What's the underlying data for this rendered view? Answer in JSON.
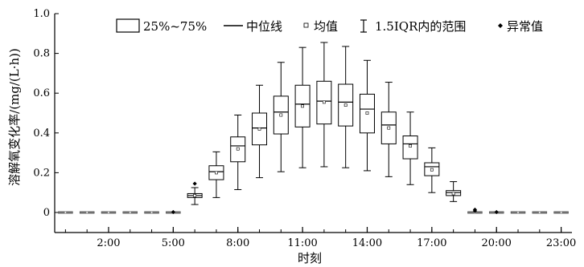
{
  "chart_data": {
    "type": "boxplot",
    "xlabel": "时刻",
    "ylabel": "溶解氧变化率/(mg/(L·h))",
    "ylim": [
      0,
      1.0
    ],
    "yticks": [
      {
        "value": 0,
        "label": "0"
      },
      {
        "value": 0.2,
        "label": "0.2"
      },
      {
        "value": 0.4,
        "label": "0.4"
      },
      {
        "value": 0.6,
        "label": "0.6"
      },
      {
        "value": 0.8,
        "label": "0.8"
      },
      {
        "value": 1.0,
        "label": "1.0"
      }
    ],
    "xlim": [
      -0.5,
      23.5
    ],
    "xticks": [
      {
        "value": 2,
        "label": "2:00"
      },
      {
        "value": 5,
        "label": "5:00"
      },
      {
        "value": 8,
        "label": "8:00"
      },
      {
        "value": 11,
        "label": "11:00"
      },
      {
        "value": 14,
        "label": "14:00"
      },
      {
        "value": 17,
        "label": "17:00"
      },
      {
        "value": 20,
        "label": "20:00"
      },
      {
        "value": 23,
        "label": "23:00"
      }
    ],
    "legend": {
      "placement": "top",
      "box": "25%~75%",
      "median": "中位线",
      "mean": "均值",
      "whisker": "1.5IQR内的范围",
      "outlier": "异常值"
    },
    "boxes": [
      {
        "hour": 0,
        "whisker_low": 0,
        "q1": 0,
        "median": 0,
        "q3": 0,
        "whisker_high": 0,
        "mean": 0,
        "outliers": []
      },
      {
        "hour": 1,
        "whisker_low": 0,
        "q1": 0,
        "median": 0,
        "q3": 0,
        "whisker_high": 0,
        "mean": 0,
        "outliers": []
      },
      {
        "hour": 2,
        "whisker_low": 0,
        "q1": 0,
        "median": 0,
        "q3": 0,
        "whisker_high": 0,
        "mean": 0,
        "outliers": []
      },
      {
        "hour": 3,
        "whisker_low": 0,
        "q1": 0,
        "median": 0,
        "q3": 0,
        "whisker_high": 0,
        "mean": 0,
        "outliers": []
      },
      {
        "hour": 4,
        "whisker_low": 0,
        "q1": 0,
        "median": 0,
        "q3": 0,
        "whisker_high": 0,
        "mean": 0,
        "outliers": []
      },
      {
        "hour": 5,
        "whisker_low": 0,
        "q1": 0,
        "median": 0,
        "q3": 0,
        "whisker_high": 0,
        "mean": 0,
        "outliers": [
          0.002
        ]
      },
      {
        "hour": 6,
        "whisker_low": 0.04,
        "q1": 0.075,
        "median": 0.085,
        "q3": 0.095,
        "whisker_high": 0.125,
        "mean": 0.085,
        "outliers": [
          0.145
        ]
      },
      {
        "hour": 7,
        "whisker_low": 0.075,
        "q1": 0.165,
        "median": 0.205,
        "q3": 0.235,
        "whisker_high": 0.305,
        "mean": 0.2,
        "outliers": []
      },
      {
        "hour": 8,
        "whisker_low": 0.115,
        "q1": 0.255,
        "median": 0.335,
        "q3": 0.38,
        "whisker_high": 0.49,
        "mean": 0.32,
        "outliers": []
      },
      {
        "hour": 9,
        "whisker_low": 0.175,
        "q1": 0.34,
        "median": 0.425,
        "q3": 0.5,
        "whisker_high": 0.64,
        "mean": 0.42,
        "outliers": []
      },
      {
        "hour": 10,
        "whisker_low": 0.205,
        "q1": 0.395,
        "median": 0.505,
        "q3": 0.585,
        "whisker_high": 0.755,
        "mean": 0.49,
        "outliers": []
      },
      {
        "hour": 11,
        "whisker_low": 0.225,
        "q1": 0.43,
        "median": 0.545,
        "q3": 0.64,
        "whisker_high": 0.83,
        "mean": 0.535,
        "outliers": []
      },
      {
        "hour": 12,
        "whisker_low": 0.23,
        "q1": 0.445,
        "median": 0.56,
        "q3": 0.66,
        "whisker_high": 0.855,
        "mean": 0.555,
        "outliers": []
      },
      {
        "hour": 13,
        "whisker_low": 0.225,
        "q1": 0.435,
        "median": 0.555,
        "q3": 0.645,
        "whisker_high": 0.835,
        "mean": 0.54,
        "outliers": []
      },
      {
        "hour": 14,
        "whisker_low": 0.21,
        "q1": 0.4,
        "median": 0.52,
        "q3": 0.595,
        "whisker_high": 0.765,
        "mean": 0.5,
        "outliers": []
      },
      {
        "hour": 15,
        "whisker_low": 0.18,
        "q1": 0.345,
        "median": 0.44,
        "q3": 0.505,
        "whisker_high": 0.655,
        "mean": 0.425,
        "outliers": []
      },
      {
        "hour": 16,
        "whisker_low": 0.14,
        "q1": 0.27,
        "median": 0.345,
        "q3": 0.385,
        "whisker_high": 0.505,
        "mean": 0.335,
        "outliers": []
      },
      {
        "hour": 17,
        "whisker_low": 0.1,
        "q1": 0.185,
        "median": 0.23,
        "q3": 0.25,
        "whisker_high": 0.325,
        "mean": 0.215,
        "outliers": []
      },
      {
        "hour": 18,
        "whisker_low": 0.055,
        "q1": 0.085,
        "median": 0.1,
        "q3": 0.11,
        "whisker_high": 0.155,
        "mean": 0.095,
        "outliers": []
      },
      {
        "hour": 19,
        "whisker_low": 0,
        "q1": 0,
        "median": 0,
        "q3": 0,
        "whisker_high": 0,
        "mean": 0,
        "outliers": [
          0.008,
          0.014
        ]
      },
      {
        "hour": 20,
        "whisker_low": 0,
        "q1": 0,
        "median": 0,
        "q3": 0,
        "whisker_high": 0,
        "mean": 0,
        "outliers": [
          0.002
        ]
      },
      {
        "hour": 21,
        "whisker_low": 0,
        "q1": 0,
        "median": 0,
        "q3": 0,
        "whisker_high": 0,
        "mean": 0,
        "outliers": []
      },
      {
        "hour": 22,
        "whisker_low": 0,
        "q1": 0,
        "median": 0,
        "q3": 0,
        "whisker_high": 0,
        "mean": 0,
        "outliers": []
      },
      {
        "hour": 23,
        "whisker_low": 0,
        "q1": 0,
        "median": 0,
        "q3": 0,
        "whisker_high": 0,
        "mean": 0,
        "outliers": []
      }
    ]
  }
}
